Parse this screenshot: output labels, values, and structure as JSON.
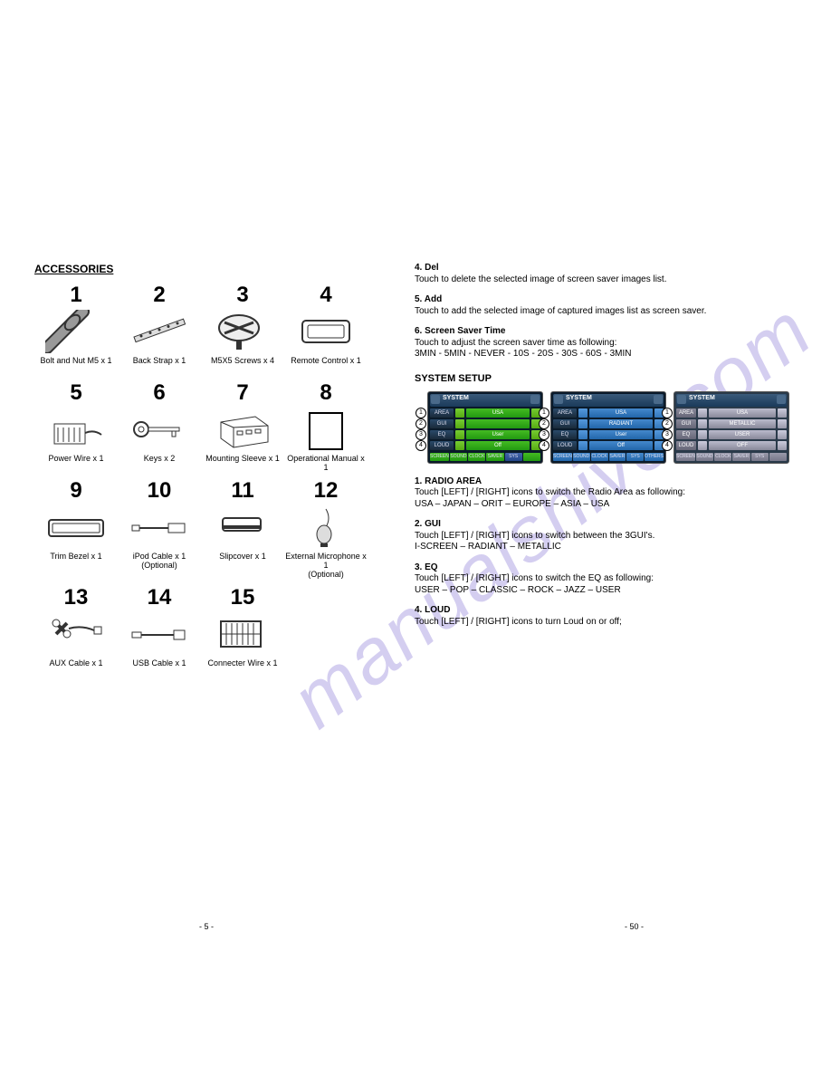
{
  "watermark": "manualshive.com",
  "left": {
    "title": "ACCESSORIES",
    "page_num": "- 5 -",
    "items": [
      {
        "num": "1",
        "label": "Bolt and Nut M5 x 1",
        "icon": "bolt"
      },
      {
        "num": "2",
        "label": "Back Strap x 1",
        "icon": "strap"
      },
      {
        "num": "3",
        "label": "M5X5 Screws x 4",
        "icon": "screw"
      },
      {
        "num": "4",
        "label": "Remote Control x 1",
        "icon": "remote"
      },
      {
        "num": "5",
        "label": "Power Wire x 1",
        "icon": "powerwire"
      },
      {
        "num": "6",
        "label": "Keys x 2",
        "icon": "key"
      },
      {
        "num": "7",
        "label": "Mounting Sleeve x 1",
        "icon": "sleeve"
      },
      {
        "num": "8",
        "label": "Operational Manual x 1",
        "icon": "manual"
      },
      {
        "num": "9",
        "label": "Trim Bezel x 1",
        "icon": "bezel"
      },
      {
        "num": "10",
        "label": "iPod Cable x 1\n(Optional)",
        "icon": "ipod"
      },
      {
        "num": "11",
        "label": "Slipcover x 1",
        "icon": "slip"
      },
      {
        "num": "12",
        "label": "External Microphone x 1\n(Optional)",
        "icon": "mic"
      },
      {
        "num": "13",
        "label": "AUX Cable x 1",
        "icon": "aux"
      },
      {
        "num": "14",
        "label": "USB Cable x 1",
        "icon": "usb"
      },
      {
        "num": "15",
        "label": "Connecter Wire x 1",
        "icon": "connector"
      }
    ]
  },
  "right": {
    "page_num": "- 50 -",
    "pre_settings": [
      {
        "title": "4. Del",
        "body": "Touch to delete the selected image of screen saver images list."
      },
      {
        "title": "5. Add",
        "body": "Touch to add the selected image of captured images list as screen saver."
      },
      {
        "title": "6. Screen Saver Time",
        "body": "Touch to adjust the screen saver time as following:\n3MIN - 5MIN - NEVER - 10S - 20S - 30S - 60S - 3MIN"
      }
    ],
    "system_title": "SYSTEM SETUP",
    "screens": [
      {
        "theme": "green-theme",
        "header": "SYSTEM",
        "rows": [
          {
            "label": "AREA",
            "lbtn": "◀",
            "val": "USA",
            "rbtn": "▶"
          },
          {
            "label": "GUI",
            "lbtn": "◀",
            "val": "",
            "rbtn": "▶"
          },
          {
            "label": "EQ",
            "lbtn": "◀",
            "val": "User",
            "rbtn": "▶"
          },
          {
            "label": "LOUD",
            "lbtn": "◀",
            "val": "Off",
            "rbtn": "▶"
          }
        ],
        "footer": [
          "SCREEN",
          "SOUND",
          "CLOCK",
          "SAVER",
          "SYS",
          ""
        ]
      },
      {
        "theme": "blue-theme",
        "header": "SYSTEM",
        "rows": [
          {
            "label": "AREA",
            "lbtn": "◀",
            "val": "USA",
            "rbtn": "▶"
          },
          {
            "label": "GUI",
            "lbtn": "◀",
            "val": "RADIANT",
            "rbtn": "▶"
          },
          {
            "label": "EQ",
            "lbtn": "◀",
            "val": "User",
            "rbtn": "▶"
          },
          {
            "label": "LOUD",
            "lbtn": "◀",
            "val": "Off",
            "rbtn": "▶"
          }
        ],
        "footer": [
          "SCREEN",
          "SOUND",
          "CLOCK",
          "SAVER",
          "SYS",
          "OTHERS"
        ]
      },
      {
        "theme": "silver-theme",
        "header": "SYSTEM",
        "rows": [
          {
            "label": "AREA",
            "lbtn": "◀",
            "val": "USA",
            "rbtn": "▶"
          },
          {
            "label": "GUI",
            "lbtn": "◀",
            "val": "METALLIC",
            "rbtn": "▶"
          },
          {
            "label": "EQ",
            "lbtn": "◀",
            "val": "USER",
            "rbtn": "▶"
          },
          {
            "label": "LOUD",
            "lbtn": "◀",
            "val": "OFF",
            "rbtn": "▶"
          }
        ],
        "footer": [
          "SCREEN",
          "SOUND",
          "CLOCK",
          "SAVER",
          "SYS",
          ""
        ]
      }
    ],
    "callouts": [
      "1",
      "2",
      "3",
      "4"
    ],
    "post_settings": [
      {
        "title": "1. RADIO AREA",
        "body": "Touch [LEFT] / [RIGHT] icons to switch the Radio Area as following:\nUSA – JAPAN – ORIT – EUROPE – ASIA – USA"
      },
      {
        "title": "2. GUI",
        "body": "Touch [LEFT] / [RIGHT] icons to switch between the 3GUI's.\nI-SCREEN  –   RADIANT – METALLIC"
      },
      {
        "title": "3. EQ",
        "body": "Touch [LEFT] / [RIGHT] icons to switch the EQ as following:\nUSER – POP – CLASSIC – ROCK – JAZZ – USER"
      },
      {
        "title": "4. LOUD",
        "body": "Touch [LEFT] / [RIGHT] icons to turn Loud on or off;"
      }
    ]
  }
}
